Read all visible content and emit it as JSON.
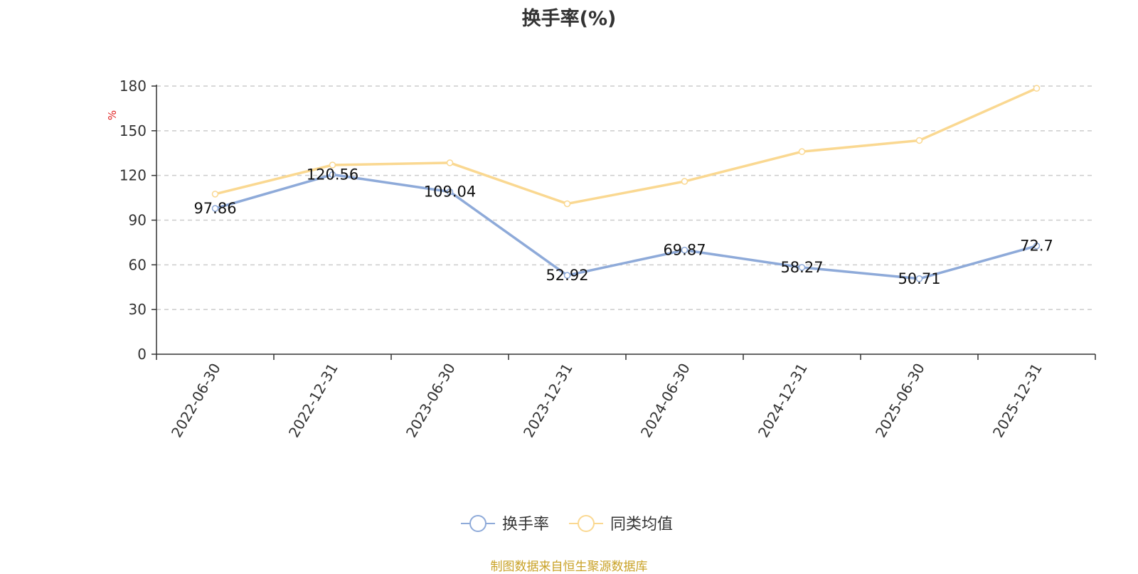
{
  "chart_data": {
    "type": "line",
    "title": "换手率(%)",
    "ylabel": "%",
    "xlabel": "",
    "categories": [
      "2022-06-30",
      "2022-12-31",
      "2023-06-30",
      "2023-12-31",
      "2024-06-30",
      "2024-12-31",
      "2025-06-30",
      "2025-12-31"
    ],
    "ylim": [
      0,
      180
    ],
    "yticks": [
      0,
      30,
      60,
      90,
      120,
      150,
      180
    ],
    "grid": true,
    "legend_position": "bottom-center",
    "series": [
      {
        "name": "换手率",
        "color": "#8eaad9",
        "values": [
          97.86,
          120.56,
          109.04,
          52.92,
          69.87,
          58.27,
          50.71,
          72.7
        ],
        "labels": [
          "97.86",
          "120.56",
          "109.04",
          "52.92",
          "69.87",
          "58.27",
          "50.71",
          "72.7"
        ]
      },
      {
        "name": "同类均值",
        "color": "#fad891",
        "values": [
          107.5,
          127.0,
          128.5,
          101.0,
          116.0,
          136.0,
          143.5,
          178.5
        ]
      }
    ]
  },
  "credit": {
    "text": "制图数据来自恒生聚源数据库",
    "color": "#c9a227"
  },
  "axis_unit_color": "#e02020"
}
